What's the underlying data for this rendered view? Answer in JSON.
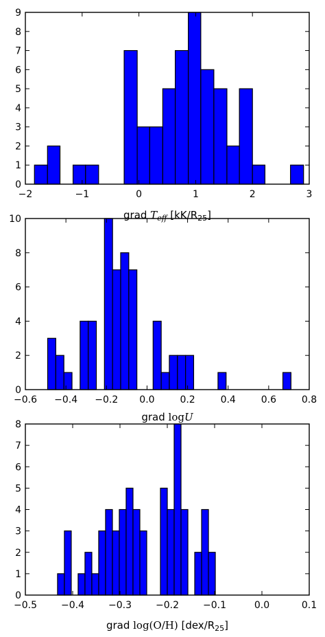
{
  "chart_data": [
    {
      "type": "bar",
      "subtype": "histogram",
      "title": "",
      "xlabel": {
        "prefix": "grad ",
        "math": "T",
        "math_sub": "eff",
        "suffix": " [kK/R",
        "suffix_sub": "25",
        "suffix_end": "]"
      },
      "xlim": [
        -2,
        3
      ],
      "ylim": [
        0,
        9
      ],
      "xticks": [
        "−2",
        "−1",
        "0",
        "1",
        "2",
        "3"
      ],
      "xtick_values": [
        -2,
        -1,
        0,
        1,
        2,
        3
      ],
      "yticks": [
        "0",
        "1",
        "2",
        "3",
        "4",
        "5",
        "6",
        "7",
        "8",
        "9"
      ],
      "ytick_values": [
        0,
        1,
        2,
        3,
        4,
        5,
        6,
        7,
        8,
        9
      ],
      "bin_edges": [
        -1.84,
        -1.61,
        -1.39,
        -1.16,
        -0.94,
        -0.71,
        -0.48,
        -0.26,
        -0.03,
        0.19,
        0.42,
        0.64,
        0.87,
        1.09,
        1.32,
        1.55,
        1.77,
        2.0,
        2.22,
        2.45,
        2.67,
        2.9
      ],
      "counts": [
        1,
        2,
        0,
        1,
        1,
        0,
        0,
        7,
        3,
        3,
        5,
        7,
        9,
        6,
        5,
        2,
        5,
        1,
        0,
        0,
        1
      ],
      "color": "#0000ff",
      "grid": false
    },
    {
      "type": "bar",
      "subtype": "histogram",
      "title": "",
      "xlabel": {
        "prefix": "grad ",
        "math": "log",
        "math_var": "U"
      },
      "xlim": [
        -0.6,
        0.8
      ],
      "ylim": [
        0,
        10
      ],
      "xticks": [
        "−0.6",
        "−0.4",
        "−0.2",
        "0.0",
        "0.2",
        "0.4",
        "0.6",
        "0.8"
      ],
      "xtick_values": [
        -0.6,
        -0.4,
        -0.2,
        0.0,
        0.2,
        0.4,
        0.6,
        0.8
      ],
      "yticks": [
        "0",
        "2",
        "4",
        "6",
        "8",
        "10"
      ],
      "ytick_values": [
        0,
        2,
        4,
        6,
        8,
        10
      ],
      "bin_edges": [
        -0.49,
        -0.45,
        -0.41,
        -0.37,
        -0.33,
        -0.29,
        -0.25,
        -0.21,
        -0.17,
        -0.13,
        -0.09,
        -0.05,
        -0.01,
        0.03,
        0.07,
        0.11,
        0.15,
        0.19,
        0.23,
        0.27,
        0.31,
        0.35,
        0.39,
        0.43,
        0.47,
        0.51,
        0.55,
        0.59,
        0.63,
        0.67,
        0.71,
        0.75
      ],
      "counts": [
        3,
        2,
        1,
        0,
        4,
        4,
        0,
        10,
        7,
        8,
        7,
        0,
        0,
        4,
        1,
        2,
        2,
        2,
        0,
        0,
        0,
        1,
        0,
        0,
        0,
        0,
        0,
        0,
        0,
        1,
        0
      ],
      "color": "#0000ff",
      "grid": false
    },
    {
      "type": "bar",
      "subtype": "histogram",
      "title": "",
      "xlabel": {
        "prefix": "grad ",
        "math": "log(O/H)",
        "suffix": " [dex/R",
        "suffix_sub": "25",
        "suffix_end": "]"
      },
      "xlim": [
        -0.5,
        0.1
      ],
      "ylim": [
        0,
        8
      ],
      "xticks": [
        "−0.5",
        "−0.4",
        "−0.3",
        "−0.2",
        "−0.1",
        "0.0",
        "0.1"
      ],
      "xtick_values": [
        -0.5,
        -0.4,
        -0.3,
        -0.2,
        -0.1,
        0.0,
        0.1
      ],
      "yticks": [
        "0",
        "1",
        "2",
        "3",
        "4",
        "5",
        "6",
        "7",
        "8"
      ],
      "ytick_values": [
        0,
        1,
        2,
        3,
        4,
        5,
        6,
        7,
        8
      ],
      "bin_edges": [
        -0.432,
        -0.4175,
        -0.403,
        -0.3885,
        -0.374,
        -0.3595,
        -0.345,
        -0.3305,
        -0.316,
        -0.3015,
        -0.287,
        -0.2725,
        -0.258,
        -0.2435,
        -0.229,
        -0.2145,
        -0.2,
        -0.1855,
        -0.171,
        -0.1565,
        -0.142,
        -0.1275,
        -0.113,
        -0.0985,
        -0.084,
        -0.0695,
        -0.055,
        -0.0405,
        -0.026,
        -0.0115,
        0.003,
        0.0175,
        0.032
      ],
      "counts": [
        1,
        3,
        0,
        1,
        2,
        1,
        3,
        4,
        3,
        4,
        5,
        4,
        3,
        0,
        0,
        5,
        4,
        8,
        4,
        0,
        2,
        4,
        2,
        0,
        0,
        0,
        0,
        0,
        0,
        0,
        0,
        0
      ],
      "color": "#0000ff",
      "grid": false
    }
  ]
}
